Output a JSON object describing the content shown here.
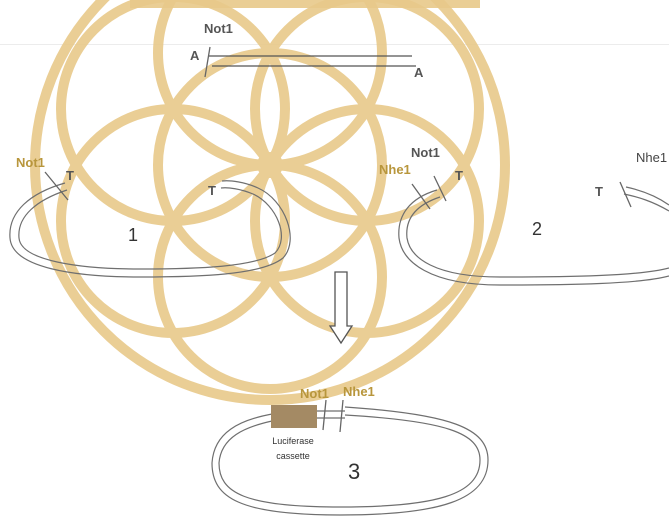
{
  "watermark": {
    "icon": "flower-of-life-watermark",
    "color": "#e8c98a"
  },
  "insert": {
    "enzyme": "Not1",
    "end_top": "A",
    "end_bottom": "A"
  },
  "plasmid1": {
    "enzyme": "Not1",
    "end_left": "T",
    "end_right": "T",
    "number": "1"
  },
  "plasmid2": {
    "enzyme_a": "Nhe1",
    "enzyme_b": "Not1",
    "end_left": "T",
    "enzyme_right": "Nhe1",
    "end_right": "T",
    "number": "2"
  },
  "arrow": {
    "icon": "down-arrow-icon"
  },
  "plasmid3": {
    "enzyme_a": "Not1",
    "enzyme_b": "Nhe1",
    "cassette_line1": "Luciferase",
    "cassette_line2": "cassette",
    "number": "3",
    "cassette_color": "#a48a64"
  }
}
